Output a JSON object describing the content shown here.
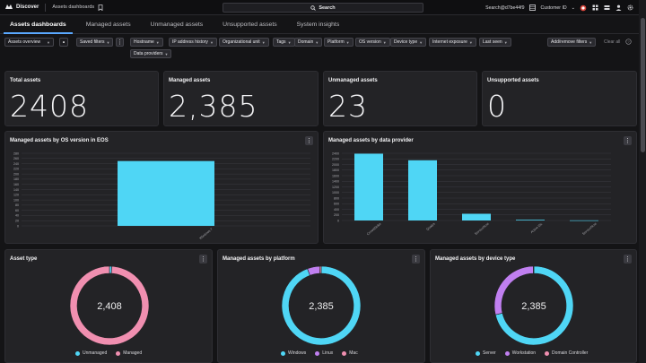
{
  "topbar": {
    "app_name": "Discover",
    "breadcrumb": "Assets dashboards",
    "search_label": "Search",
    "user": "Search@d7be44f9",
    "customer": "Customer ID"
  },
  "tabs": [
    {
      "label": "Assets dashboards"
    },
    {
      "label": "Managed assets"
    },
    {
      "label": "Unmanaged assets"
    },
    {
      "label": "Unsupported assets"
    },
    {
      "label": "System insights"
    }
  ],
  "filters": {
    "view_select": "Assets overview",
    "saved_filters": "Saved filters",
    "chips": [
      "Hostname",
      "IP address history",
      "Organizational unit",
      "Tags",
      "Domain",
      "Platform",
      "OS version",
      "Device type",
      "Internet exposure",
      "Last seen"
    ],
    "data_providers": "Data providers",
    "add_remove": "Add/remove filters",
    "clear_all": "Clear all"
  },
  "stats": [
    {
      "title": "Total assets",
      "value": "2408"
    },
    {
      "title": "Managed assets",
      "value": "2,385"
    },
    {
      "title": "Unmanaged assets",
      "value": "23"
    },
    {
      "title": "Unsupported assets",
      "value": "0"
    }
  ],
  "colors": {
    "cyan": "#4fd6f5",
    "pink": "#f08fb0",
    "purple": "#c07ff0",
    "accent": "#5aa8ff"
  },
  "chart_data": [
    {
      "type": "bar",
      "title": "Managed assets by OS version in EOS",
      "categories": [
        "Windows 7"
      ],
      "values": [
        250
      ],
      "ylim": [
        0,
        280
      ],
      "yticks": [
        0,
        20,
        40,
        60,
        80,
        100,
        120,
        140,
        160,
        180,
        200,
        220,
        240,
        260,
        280
      ]
    },
    {
      "type": "bar",
      "title": "Managed assets by data provider",
      "categories": [
        "CrowdStrike",
        "Qualys",
        "ServiceNow",
        "Active Dir.",
        "ServiceNow"
      ],
      "values": [
        2385,
        2150,
        240,
        25,
        5
      ],
      "ylim": [
        0,
        2400
      ],
      "yticks": [
        0,
        200,
        400,
        600,
        800,
        1000,
        1200,
        1400,
        1600,
        1800,
        2000,
        2200,
        2400
      ]
    },
    {
      "type": "pie",
      "title": "Asset type",
      "center": "2,408",
      "series": [
        {
          "name": "Unmanaged",
          "value": 23,
          "color": "#4fd6f5"
        },
        {
          "name": "Managed",
          "value": 2385,
          "color": "#f08fb0"
        }
      ]
    },
    {
      "type": "pie",
      "title": "Managed assets by platform",
      "center": "2,385",
      "series": [
        {
          "name": "Windows",
          "value": 2250,
          "color": "#4fd6f5"
        },
        {
          "name": "Linux",
          "value": 120,
          "color": "#c07ff0"
        },
        {
          "name": "Mac",
          "value": 15,
          "color": "#f08fb0"
        }
      ]
    },
    {
      "type": "pie",
      "title": "Managed assets by device type",
      "center": "2,385",
      "series": [
        {
          "name": "Server",
          "value": 1700,
          "color": "#4fd6f5"
        },
        {
          "name": "Workstation",
          "value": 680,
          "color": "#c07ff0"
        },
        {
          "name": "Domain Controller",
          "value": 5,
          "color": "#f08fb0"
        }
      ]
    }
  ]
}
